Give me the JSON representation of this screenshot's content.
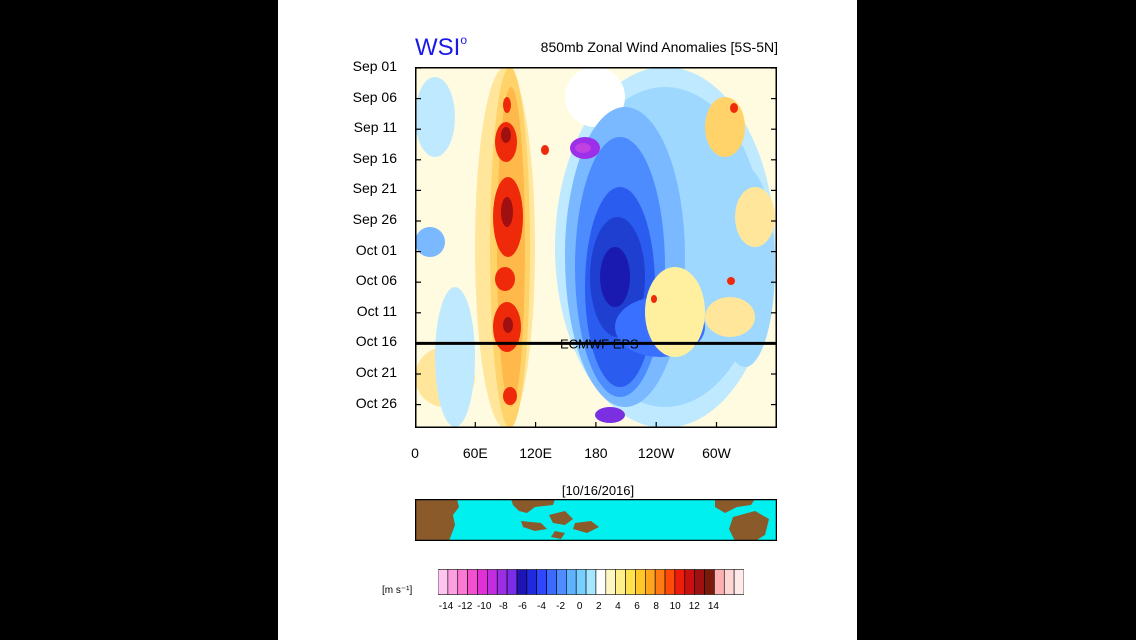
{
  "logo": {
    "text": "WSI",
    "sup": "o"
  },
  "chart_data": {
    "type": "heatmap",
    "title": "850mb Zonal Wind Anomalies [5S-5N]",
    "y_tick_labels": [
      "Sep 01",
      "Sep 06",
      "Sep 11",
      "Sep 16",
      "Sep 21",
      "Sep 26",
      "Oct 01",
      "Oct 06",
      "Oct 11",
      "Oct 16",
      "Oct 21",
      "Oct 26"
    ],
    "x_tick_labels": [
      "0",
      "60E",
      "120E",
      "180",
      "120W",
      "60W"
    ],
    "x_range_deg_east": [
      0,
      360
    ],
    "y_range_days_from_sep01": [
      0,
      60
    ],
    "forecast_divider": {
      "date": "Oct 16",
      "label": "ECMWF EPS"
    },
    "features": [
      {
        "type": "westerly_band",
        "lon_deg": 90,
        "from": "Sep 01",
        "to": "Oct 29",
        "peak_ms": 11
      },
      {
        "type": "easterly_band",
        "lon_deg": 175,
        "from": "Sep 11",
        "to": "Oct 29",
        "peak_ms": -10
      }
    ],
    "map_date": "[10/16/2016]",
    "colorbar": {
      "units": "[m s⁻¹]",
      "tick_labels": [
        "-14",
        "-12",
        "-10",
        "-8",
        "-6",
        "-4",
        "-2",
        "0",
        "2",
        "4",
        "6",
        "8",
        "10",
        "12",
        "14"
      ],
      "colors": [
        "#ffc4ef",
        "#ff9ee0",
        "#fb79d2",
        "#f44fcf",
        "#e230d7",
        "#c22de0",
        "#9a2ee3",
        "#7b2ce6",
        "#1e14b4",
        "#1e2adc",
        "#2e46ff",
        "#3a6aff",
        "#4f8cff",
        "#5fb2ff",
        "#77cfff",
        "#a6e6ff",
        "#ffffff",
        "#fff7c2",
        "#fff08a",
        "#ffe24d",
        "#ffc828",
        "#ffa61c",
        "#ff7a12",
        "#ff4a08",
        "#ee1c0a",
        "#c81010",
        "#a01010",
        "#7a1a0a",
        "#ffb0b0",
        "#ffd6d6",
        "#ffeaea"
      ]
    }
  }
}
